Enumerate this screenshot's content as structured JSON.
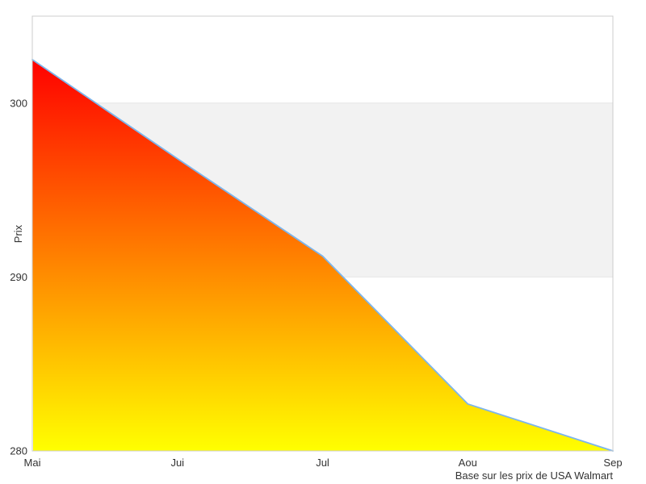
{
  "chart_data": {
    "type": "area",
    "categories": [
      "Mai",
      "Jui",
      "Jul",
      "Aou",
      "Sep"
    ],
    "values": [
      302.5,
      296.8,
      291.2,
      282.7,
      280.0
    ],
    "title": "",
    "xlabel": "",
    "ylabel": "Prix",
    "ylim": [
      280,
      305
    ],
    "yticks": [
      280,
      290,
      300
    ],
    "caption": "Base sur les prix de USA Walmart",
    "plot_band": {
      "from": 290,
      "to": 300,
      "color": "#f2f2f2"
    },
    "grid": "horizontal-at-yticks",
    "legend": "none",
    "colors": {
      "line": "#7cb5ec",
      "area_gradient_top": "#ff0000",
      "area_gradient_bottom": "#ffff00",
      "gridline": "#e6e6e6",
      "plot_border": "#cccccc",
      "text": "#333333",
      "background": "#ffffff"
    }
  }
}
